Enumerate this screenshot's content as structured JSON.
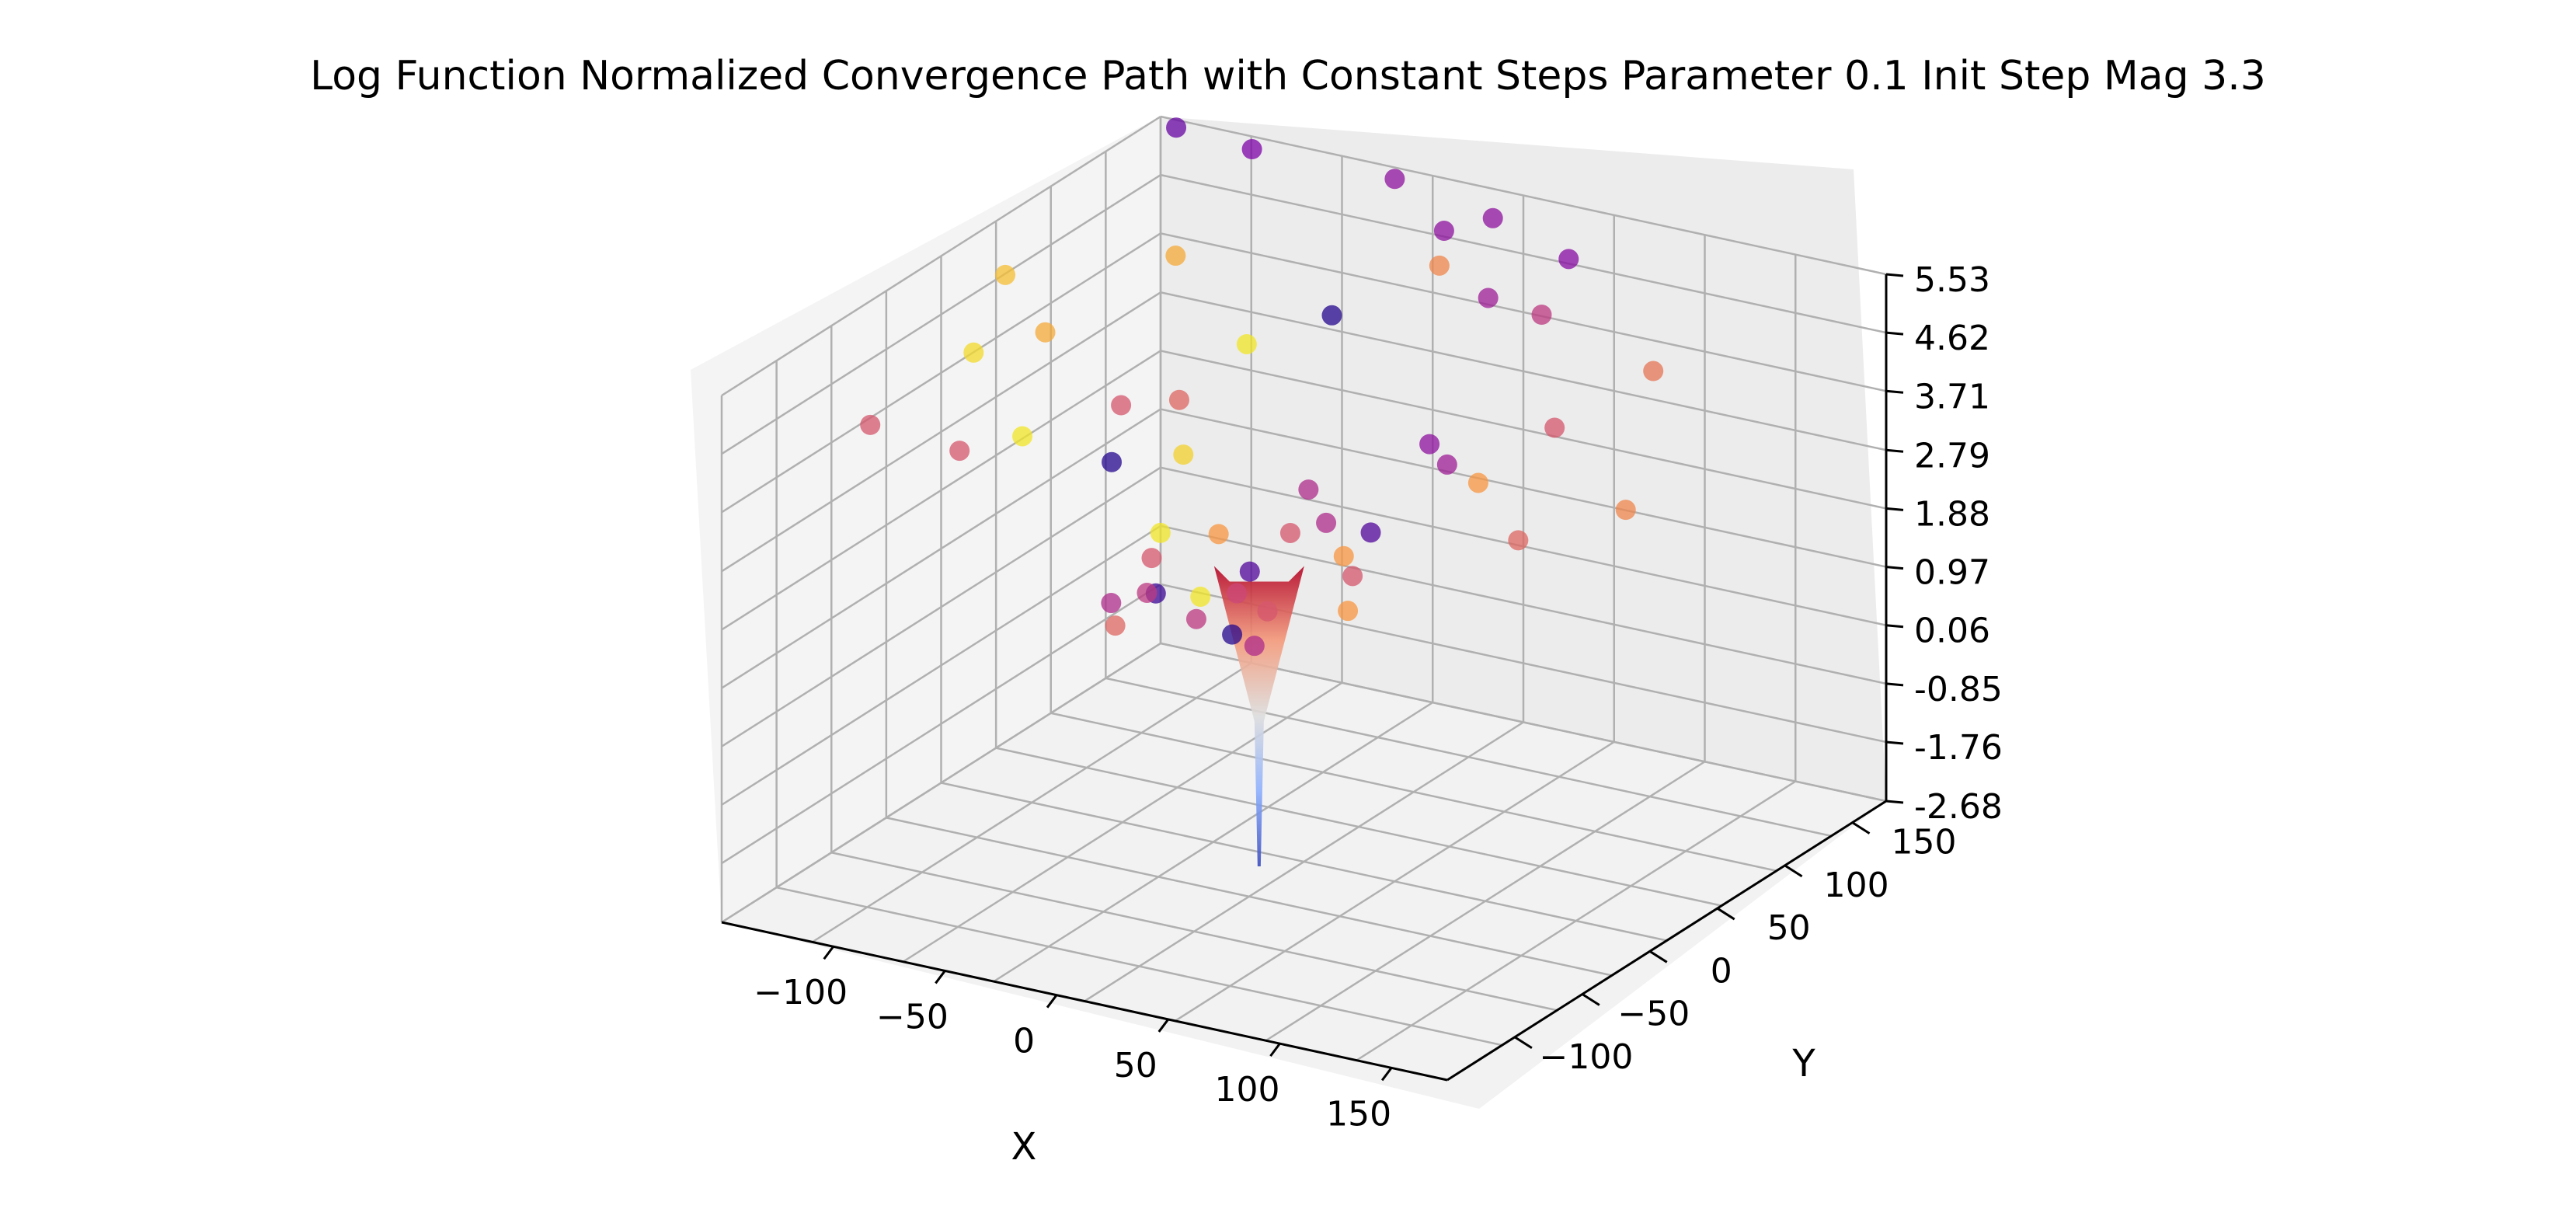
{
  "chart_data": {
    "type": "scatter",
    "subtype": "3d-scatter-with-surface",
    "title": "Log Function Normalized Convergence Path with Constant Steps Parameter 0.1 Init Step Mag 3.3",
    "xlabel": "X",
    "ylabel": "Y",
    "zlabel": "",
    "x_ticks": [
      "−100",
      "−50",
      "0",
      "50",
      "100",
      "150"
    ],
    "y_ticks": [
      "−100",
      "−50",
      "0",
      "50",
      "100",
      "150"
    ],
    "z_ticks": [
      "-2.68",
      "-1.76",
      "-0.85",
      "0.06",
      "0.97",
      "1.88",
      "2.79",
      "3.71",
      "4.62",
      "5.53"
    ],
    "xlim": [
      -150,
      175
    ],
    "ylim": [
      -150,
      175
    ],
    "zlim": [
      -2.68,
      5.53
    ],
    "grid": true,
    "colormap_points": "plasma",
    "colormap_surface": "coolwarm",
    "surface": {
      "function": "log",
      "center": [
        0,
        0
      ],
      "z_min": -2.68,
      "z_max": 2.0
    },
    "points": [
      {
        "x": -140,
        "y": 170,
        "z": 5.5,
        "c": 0.2
      },
      {
        "x": -100,
        "y": 160,
        "z": 5.6,
        "c": 0.25
      },
      {
        "x": -30,
        "y": 150,
        "z": 5.8,
        "c": 0.3
      },
      {
        "x": 20,
        "y": 140,
        "z": 5.7,
        "c": 0.3
      },
      {
        "x": 60,
        "y": 130,
        "z": 5.5,
        "c": 0.28
      },
      {
        "x": -150,
        "y": 60,
        "z": 4.6,
        "c": 0.85
      },
      {
        "x": -140,
        "y": 20,
        "z": 4.0,
        "c": 0.92
      },
      {
        "x": -120,
        "y": 40,
        "z": 4.2,
        "c": 0.8
      },
      {
        "x": -110,
        "y": 120,
        "z": 4.4,
        "c": 0.8
      },
      {
        "x": -20,
        "y": 170,
        "z": 4.8,
        "c": 0.3
      },
      {
        "x": 30,
        "y": 120,
        "z": 4.8,
        "c": 0.35
      },
      {
        "x": 60,
        "y": 110,
        "z": 4.9,
        "c": 0.45
      },
      {
        "x": -10,
        "y": 150,
        "z": 4.6,
        "c": 0.7
      },
      {
        "x": -40,
        "y": 120,
        "z": 4.0,
        "c": 0.05
      },
      {
        "x": -60,
        "y": 90,
        "z": 3.8,
        "c": 0.95
      },
      {
        "x": -150,
        "y": -40,
        "z": 3.6,
        "c": 0.55
      },
      {
        "x": -110,
        "y": -40,
        "z": 3.5,
        "c": 0.55
      },
      {
        "x": -100,
        "y": -10,
        "z": 3.4,
        "c": 0.95
      },
      {
        "x": -80,
        "y": 30,
        "z": 3.5,
        "c": 0.55
      },
      {
        "x": -60,
        "y": 40,
        "z": 3.6,
        "c": 0.6
      },
      {
        "x": -60,
        "y": -10,
        "z": 3.3,
        "c": 0.05
      },
      {
        "x": -40,
        "y": 10,
        "z": 3.3,
        "c": 0.9
      },
      {
        "x": -20,
        "y": -40,
        "z": 2.9,
        "c": 0.95
      },
      {
        "x": 0,
        "y": -30,
        "z": 2.9,
        "c": 0.75
      },
      {
        "x": 10,
        "y": 20,
        "z": 3.0,
        "c": 0.4
      },
      {
        "x": 30,
        "y": 0,
        "z": 2.9,
        "c": 0.4
      },
      {
        "x": 40,
        "y": 60,
        "z": 3.4,
        "c": 0.3
      },
      {
        "x": 60,
        "y": 40,
        "z": 3.5,
        "c": 0.35
      },
      {
        "x": 80,
        "y": 30,
        "z": 3.5,
        "c": 0.75
      },
      {
        "x": 90,
        "y": 70,
        "z": 3.9,
        "c": 0.55
      },
      {
        "x": 110,
        "y": 110,
        "z": 4.4,
        "c": 0.65
      },
      {
        "x": 140,
        "y": 40,
        "z": 3.4,
        "c": 0.7
      },
      {
        "x": 110,
        "y": 10,
        "z": 3.1,
        "c": 0.6
      },
      {
        "x": 50,
        "y": 0,
        "z": 2.9,
        "c": 0.15
      },
      {
        "x": 60,
        "y": -30,
        "z": 2.7,
        "c": 0.55
      },
      {
        "x": 70,
        "y": -50,
        "z": 2.5,
        "c": 0.75
      },
      {
        "x": 40,
        "y": -60,
        "z": 2.4,
        "c": 0.55
      },
      {
        "x": 20,
        "y": -40,
        "z": 2.6,
        "c": 0.15
      },
      {
        "x": 50,
        "y": -20,
        "z": 2.8,
        "c": 0.75
      },
      {
        "x": 20,
        "y": -10,
        "z": 2.8,
        "c": 0.55
      },
      {
        "x": 10,
        "y": -60,
        "z": 2.4,
        "c": 0.95
      },
      {
        "x": -10,
        "y": -90,
        "z": 2.2,
        "c": 0.6
      },
      {
        "x": -10,
        "y": -60,
        "z": 2.3,
        "c": 0.1
      },
      {
        "x": -30,
        "y": -60,
        "z": 2.0,
        "c": 0.4
      },
      {
        "x": -20,
        "y": -50,
        "z": 2.1,
        "c": 0.45
      },
      {
        "x": -30,
        "y": -30,
        "z": 2.3,
        "c": 0.55
      },
      {
        "x": -10,
        "y": -30,
        "z": 1.5,
        "c": 0.45
      },
      {
        "x": 0,
        "y": -20,
        "z": 1.2,
        "c": 0.05
      },
      {
        "x": 10,
        "y": -20,
        "z": 1.1,
        "c": 0.4
      },
      {
        "x": -10,
        "y": 0,
        "z": 1.5,
        "c": 0.5
      }
    ]
  }
}
